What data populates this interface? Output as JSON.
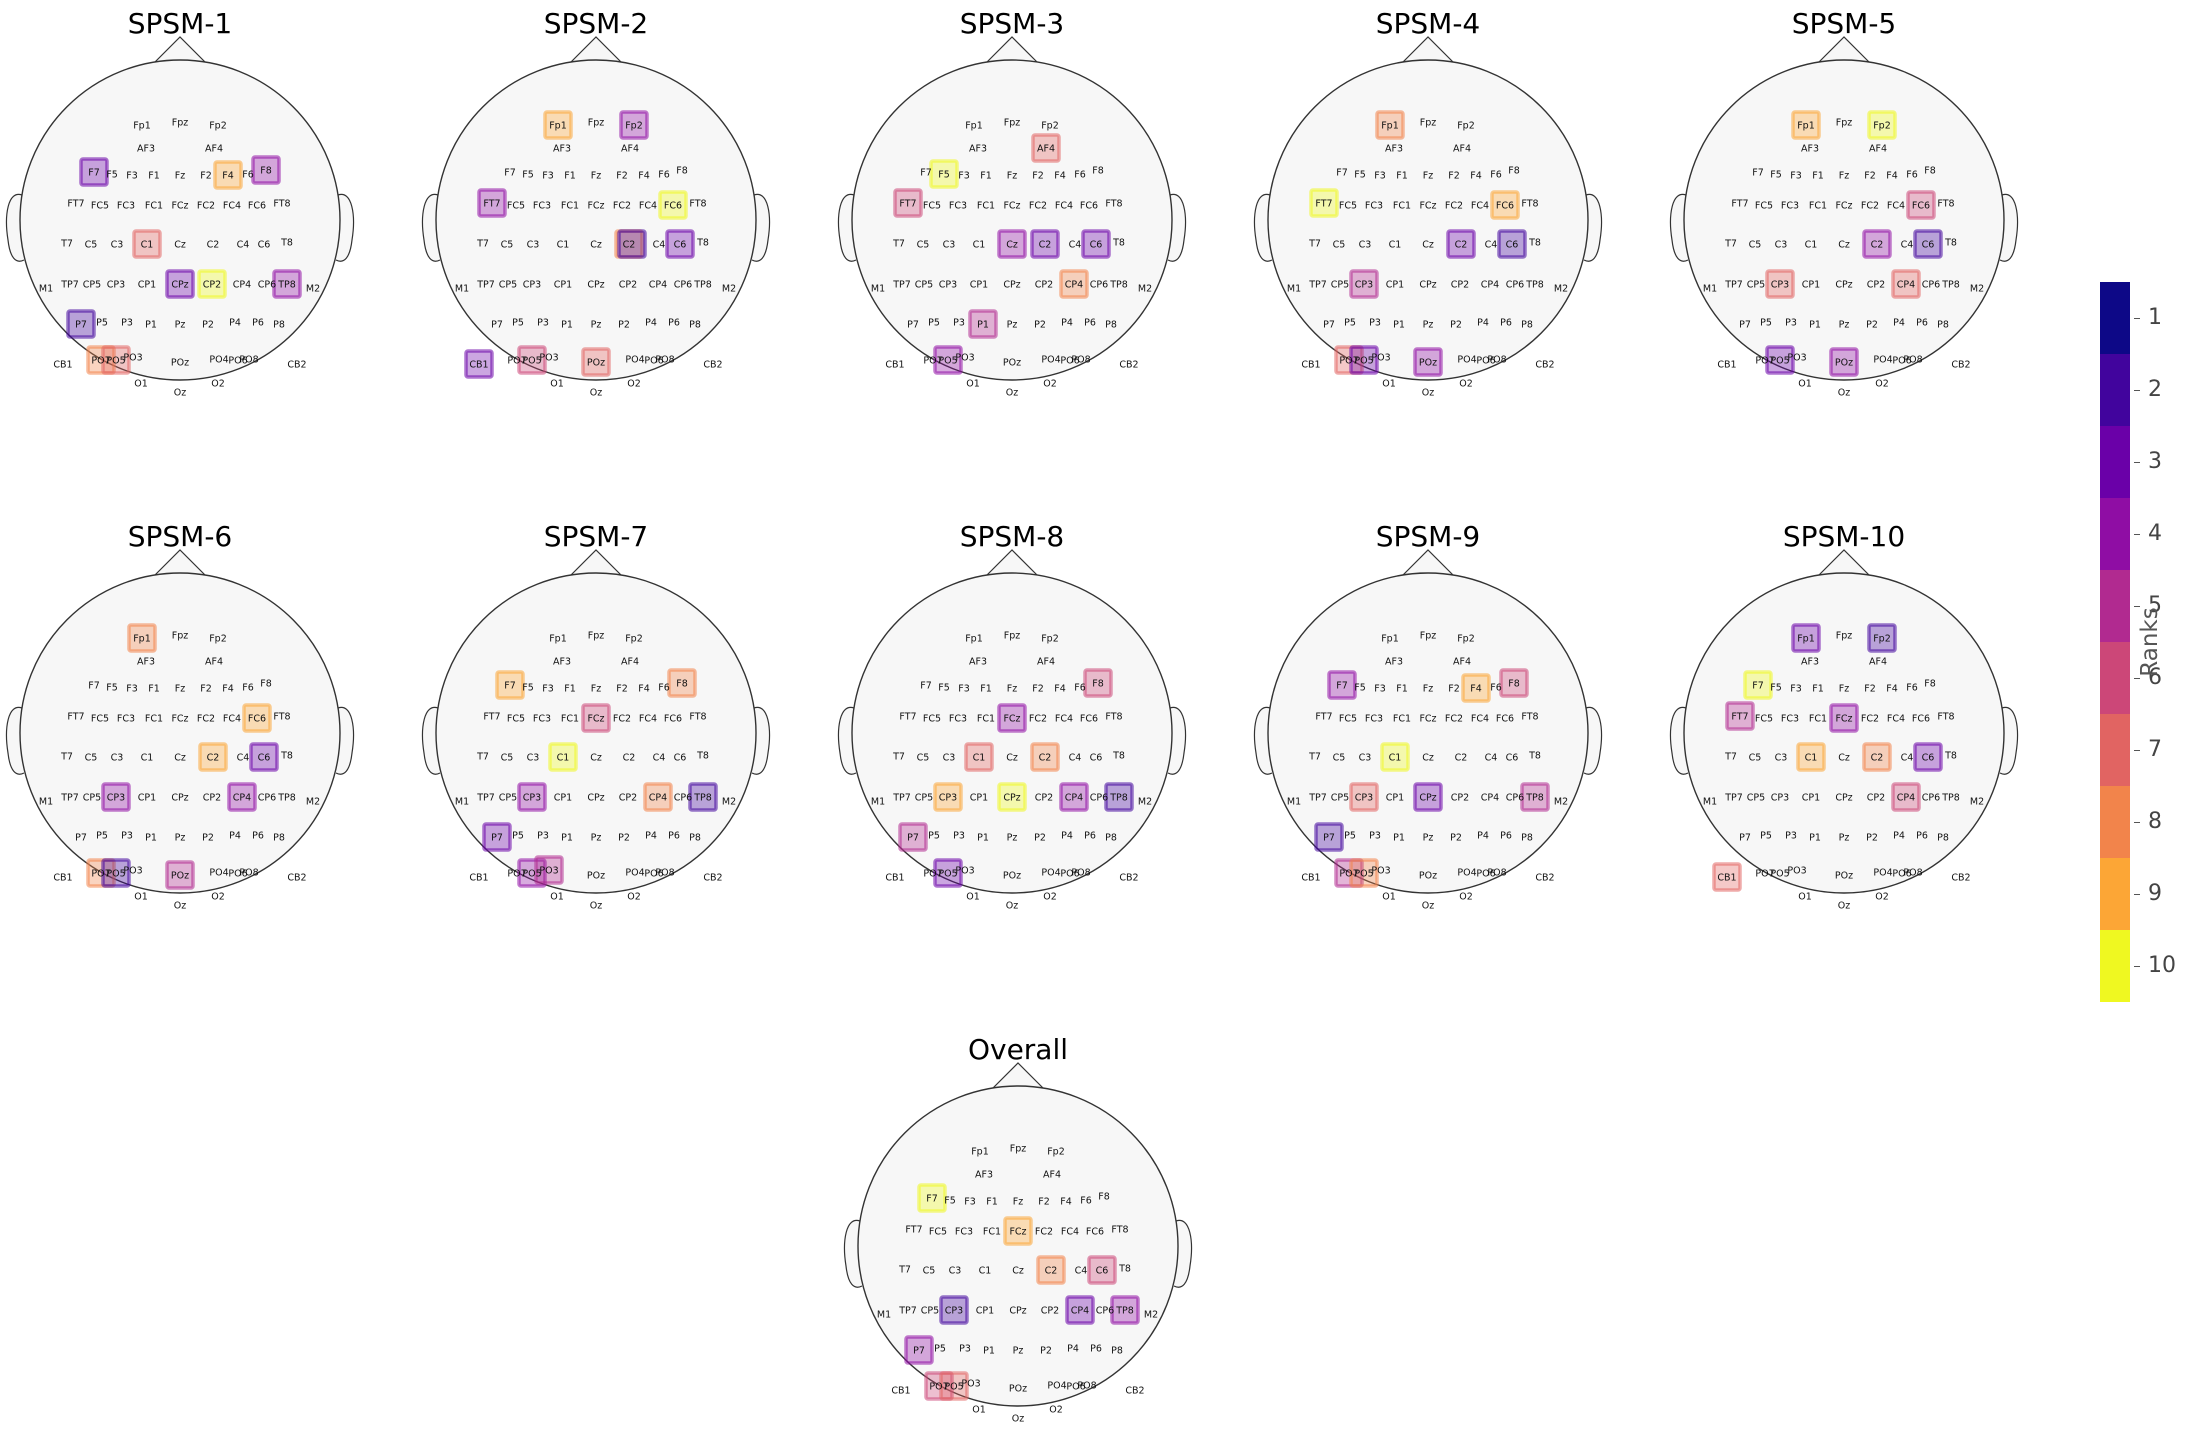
{
  "figure": {
    "colorbar": {
      "title": "Ranks",
      "ticks": [
        "1",
        "2",
        "3",
        "4",
        "5",
        "6",
        "7",
        "8",
        "9",
        "10"
      ]
    },
    "rank_colors": [
      "#0d0887",
      "#41049d",
      "#6a00a8",
      "#8f0da4",
      "#b12a90",
      "#cc4778",
      "#e16462",
      "#f2844b",
      "#fca636",
      "#eff821"
    ],
    "electrodes": [
      "Fp1",
      "Fpz",
      "Fp2",
      "AF3",
      "AF4",
      "F7",
      "F5",
      "F3",
      "F1",
      "Fz",
      "F2",
      "F4",
      "F6",
      "F8",
      "FT7",
      "FC5",
      "FC3",
      "FC1",
      "FCz",
      "FC2",
      "FC4",
      "FC6",
      "FT8",
      "T7",
      "C5",
      "C3",
      "C1",
      "Cz",
      "C2",
      "C4",
      "C6",
      "T8",
      "M1",
      "TP7",
      "CP5",
      "CP3",
      "CP1",
      "CPz",
      "CP2",
      "CP4",
      "CP6",
      "TP8",
      "M2",
      "P7",
      "P5",
      "P3",
      "P1",
      "Pz",
      "P2",
      "P4",
      "P6",
      "P8",
      "CB1",
      "PO7",
      "PO5",
      "PO3",
      "POz",
      "PO4",
      "PO6",
      "PO8",
      "CB2",
      "O1",
      "Oz",
      "O2"
    ],
    "panels": [
      {
        "title": "SPSM-1",
        "highlights": [
          {
            "ch": "F7",
            "rank": 3
          },
          {
            "ch": "F4",
            "rank": 9
          },
          {
            "ch": "F8",
            "rank": 4
          },
          {
            "ch": "C1",
            "rank": 7
          },
          {
            "ch": "CPz",
            "rank": 3
          },
          {
            "ch": "CP2",
            "rank": 10
          },
          {
            "ch": "TP8",
            "rank": 4
          },
          {
            "ch": "P7",
            "rank": 2
          },
          {
            "ch": "PO7",
            "rank": 8
          },
          {
            "ch": "PO5",
            "rank": 7
          }
        ]
      },
      {
        "title": "SPSM-2",
        "highlights": [
          {
            "ch": "Fp1",
            "rank": 9
          },
          {
            "ch": "Fp2",
            "rank": 4
          },
          {
            "ch": "FT7",
            "rank": 4
          },
          {
            "ch": "FC6",
            "rank": 10
          },
          {
            "ch": "C2",
            "rank": 8
          },
          {
            "ch": "C2b",
            "rank": 2
          },
          {
            "ch": "C6",
            "rank": 3
          },
          {
            "ch": "CB1",
            "rank": 3
          },
          {
            "ch": "PO5",
            "rank": 6
          },
          {
            "ch": "POz",
            "rank": 7
          }
        ]
      },
      {
        "title": "SPSM-3",
        "highlights": [
          {
            "ch": "AF4",
            "rank": 7
          },
          {
            "ch": "F5",
            "rank": 10
          },
          {
            "ch": "FT7",
            "rank": 6
          },
          {
            "ch": "Cz",
            "rank": 4
          },
          {
            "ch": "C2",
            "rank": 3
          },
          {
            "ch": "C6",
            "rank": 3
          },
          {
            "ch": "CP4",
            "rank": 8
          },
          {
            "ch": "P1",
            "rank": 5
          },
          {
            "ch": "PO5",
            "rank": 4
          }
        ]
      },
      {
        "title": "SPSM-4",
        "highlights": [
          {
            "ch": "Fp1",
            "rank": 8
          },
          {
            "ch": "FT7",
            "rank": 10
          },
          {
            "ch": "FC6",
            "rank": 9
          },
          {
            "ch": "C2",
            "rank": 3
          },
          {
            "ch": "C6",
            "rank": 2
          },
          {
            "ch": "CP3",
            "rank": 5
          },
          {
            "ch": "PO7",
            "rank": 7
          },
          {
            "ch": "PO5",
            "rank": 3
          },
          {
            "ch": "POz",
            "rank": 4
          }
        ]
      },
      {
        "title": "SPSM-5",
        "highlights": [
          {
            "ch": "Fp1",
            "rank": 9
          },
          {
            "ch": "Fp2",
            "rank": 10
          },
          {
            "ch": "FC6",
            "rank": 6
          },
          {
            "ch": "C2",
            "rank": 4
          },
          {
            "ch": "C6",
            "rank": 2
          },
          {
            "ch": "CP3",
            "rank": 7
          },
          {
            "ch": "CP4",
            "rank": 7
          },
          {
            "ch": "PO5",
            "rank": 3
          },
          {
            "ch": "POz",
            "rank": 4
          }
        ]
      },
      {
        "title": "SPSM-6",
        "highlights": [
          {
            "ch": "Fp1",
            "rank": 8
          },
          {
            "ch": "FC6",
            "rank": 9
          },
          {
            "ch": "C2",
            "rank": 9
          },
          {
            "ch": "C6",
            "rank": 3
          },
          {
            "ch": "CP3",
            "rank": 4
          },
          {
            "ch": "CP4",
            "rank": 4
          },
          {
            "ch": "PO7",
            "rank": 8
          },
          {
            "ch": "PO5",
            "rank": 2
          },
          {
            "ch": "POz",
            "rank": 5
          }
        ]
      },
      {
        "title": "SPSM-7",
        "highlights": [
          {
            "ch": "F7",
            "rank": 9
          },
          {
            "ch": "F8",
            "rank": 8
          },
          {
            "ch": "FCz",
            "rank": 6
          },
          {
            "ch": "C1",
            "rank": 10
          },
          {
            "ch": "CP3",
            "rank": 4
          },
          {
            "ch": "CP4",
            "rank": 8
          },
          {
            "ch": "TP8",
            "rank": 2
          },
          {
            "ch": "P7",
            "rank": 3
          },
          {
            "ch": "PO5",
            "rank": 4
          },
          {
            "ch": "PO3",
            "rank": 5
          }
        ]
      },
      {
        "title": "SPSM-8",
        "highlights": [
          {
            "ch": "F8",
            "rank": 6
          },
          {
            "ch": "FCz",
            "rank": 4
          },
          {
            "ch": "C1",
            "rank": 7
          },
          {
            "ch": "C2",
            "rank": 8
          },
          {
            "ch": "CP3",
            "rank": 9
          },
          {
            "ch": "CPz",
            "rank": 10
          },
          {
            "ch": "CP4",
            "rank": 4
          },
          {
            "ch": "TP8",
            "rank": 2
          },
          {
            "ch": "P7",
            "rank": 5
          },
          {
            "ch": "PO5",
            "rank": 3
          }
        ]
      },
      {
        "title": "SPSM-9",
        "highlights": [
          {
            "ch": "F7",
            "rank": 4
          },
          {
            "ch": "F4",
            "rank": 9
          },
          {
            "ch": "F8",
            "rank": 6
          },
          {
            "ch": "C1",
            "rank": 10
          },
          {
            "ch": "CP3",
            "rank": 7
          },
          {
            "ch": "CPz",
            "rank": 3
          },
          {
            "ch": "TP8",
            "rank": 5
          },
          {
            "ch": "P7",
            "rank": 2
          },
          {
            "ch": "PO7",
            "rank": 5
          },
          {
            "ch": "PO5",
            "rank": 8
          }
        ]
      },
      {
        "title": "SPSM-10",
        "highlights": [
          {
            "ch": "Fp1",
            "rank": 3
          },
          {
            "ch": "Fp2",
            "rank": 2
          },
          {
            "ch": "F7",
            "rank": 10
          },
          {
            "ch": "FT7",
            "rank": 5
          },
          {
            "ch": "FCz",
            "rank": 4
          },
          {
            "ch": "C1",
            "rank": 9
          },
          {
            "ch": "C2",
            "rank": 8
          },
          {
            "ch": "C6",
            "rank": 3
          },
          {
            "ch": "CP4",
            "rank": 6
          },
          {
            "ch": "CB1",
            "rank": 7
          }
        ]
      },
      {
        "title": "Overall",
        "highlights": [
          {
            "ch": "F7",
            "rank": 10
          },
          {
            "ch": "FCz",
            "rank": 9
          },
          {
            "ch": "C2",
            "rank": 8
          },
          {
            "ch": "C6",
            "rank": 6
          },
          {
            "ch": "CP3",
            "rank": 2
          },
          {
            "ch": "CP4",
            "rank": 3
          },
          {
            "ch": "TP8",
            "rank": 4
          },
          {
            "ch": "P7",
            "rank": 4
          },
          {
            "ch": "PO7",
            "rank": 6
          },
          {
            "ch": "PO5",
            "rank": 7
          }
        ]
      }
    ]
  }
}
